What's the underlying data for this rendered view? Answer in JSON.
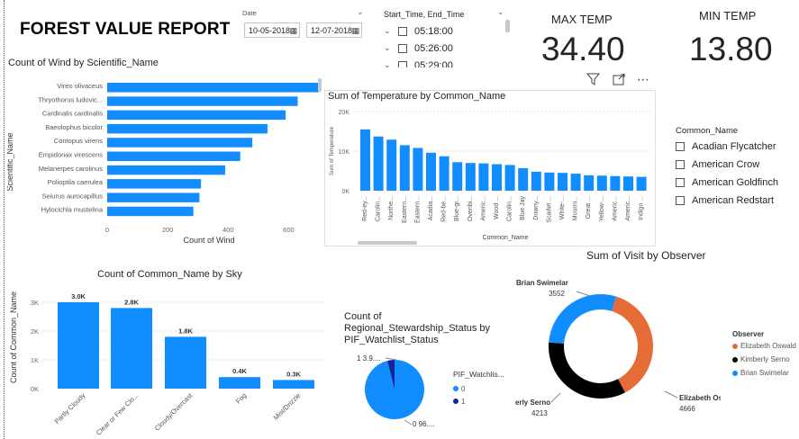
{
  "report": {
    "title": "FOREST VALUE REPORT"
  },
  "date_slicer": {
    "label": "Date",
    "start": "10-05-2018",
    "end": "12-07-2018",
    "calendar_icon": "calendar-icon"
  },
  "time_slicer": {
    "label": "Start_Time, End_Time",
    "items": [
      "05:18:00",
      "05:26:00",
      "05:29:00"
    ]
  },
  "cards": {
    "max_temp": {
      "label": "MAX TEMP",
      "value": "34.40"
    },
    "min_temp": {
      "label": "MIN TEMP",
      "value": "13.80"
    }
  },
  "visual_toolbar": {
    "filter_icon": "filter-icon",
    "focus_icon": "focus-mode-icon",
    "more_icon": "more-options-icon"
  },
  "common_name_slicer": {
    "label": "Common_Name",
    "items": [
      "Acadian Flycatcher",
      "American Crow",
      "American Goldfinch",
      "American Redstart"
    ]
  },
  "chart_data": [
    {
      "type": "bar",
      "orientation": "horizontal",
      "title": "Count of Wind by Scientific_Name",
      "xlabel": "Count of Wind",
      "ylabel": "Scientific_Name",
      "categories": [
        "Vireo olivaceus",
        "Thryothorus ludovic...",
        "Cardinalis cardinalis",
        "Baeolophus bicolor",
        "Contopus virens",
        "Empidonax virescens",
        "Melanerpes carolinus",
        "Polioptila caerulea",
        "Seiurus aurocapillus",
        "Hylocichla mustelina"
      ],
      "values": [
        700,
        630,
        590,
        530,
        480,
        440,
        390,
        310,
        305,
        285
      ],
      "xticks": [
        "0",
        "200",
        "400",
        "600"
      ],
      "xlim": [
        0,
        700
      ],
      "color": "#118DFF"
    },
    {
      "type": "bar",
      "title": "Sum of Temperature by Common_Name",
      "xlabel": "Common_Name",
      "ylabel": "Sum of Temperature",
      "categories": [
        "Red-ey...",
        "Carolin...",
        "Northe...",
        "Eastern...",
        "Eastern...",
        "Acadia...",
        "Red-be...",
        "Blue-gr...",
        "Ovenbi...",
        "Americ...",
        "Wood ...",
        "Carolin...",
        "Blue Jay",
        "Downy...",
        "Scarlet ...",
        "White-...",
        "Mourni...",
        "Great ...",
        "Yellow-...",
        "Americ...",
        "Americ...",
        "Indigo ..."
      ],
      "values": [
        15500,
        13700,
        12900,
        11500,
        10800,
        9600,
        8700,
        7200,
        7000,
        6900,
        6700,
        6500,
        5700,
        4800,
        4600,
        4500,
        4300,
        3900,
        3800,
        3700,
        3600,
        3500
      ],
      "yticks": [
        "0K",
        "10K",
        "20K"
      ],
      "ylim": [
        0,
        20000
      ],
      "color": "#118DFF"
    },
    {
      "type": "bar",
      "title": "Count of Common_Name by Sky",
      "ylabel": "Count of Common_Name",
      "categories": [
        "Partly Cloudy",
        "Clear or Few Clo...",
        "Cloudy/Overcast",
        "Fog",
        "Mist/Drizzle"
      ],
      "values": [
        3000,
        2800,
        1800,
        400,
        300
      ],
      "data_labels": [
        "3.0K",
        "2.8K",
        "1.8K",
        "0.4K",
        "0.3K"
      ],
      "yticks": [
        "0K",
        "1K",
        "2K",
        "3K"
      ],
      "ylim": [
        0,
        3000
      ],
      "color": "#118DFF"
    },
    {
      "type": "pie",
      "title": "Count of Regional_Stewardship_Status by PIF_Watchlist_Status",
      "legend_title": "PIF_Watchlis...",
      "slices": [
        {
          "name": "0",
          "value": 96,
          "label": "0 96....",
          "color": "#118DFF"
        },
        {
          "name": "1",
          "value": 3.9,
          "label": "1 3.9....",
          "color": "#12239E"
        }
      ]
    },
    {
      "type": "pie",
      "donut": true,
      "title": "Sum of Visit by Observer",
      "legend_title": "Observer",
      "slices": [
        {
          "name": "Elizabeth Oswald",
          "value": 4666,
          "label": "Elizabeth Os...",
          "color": "#E66C37"
        },
        {
          "name": "Kimberly Serno",
          "value": 4213,
          "label": "erly Serno",
          "color": "#000000"
        },
        {
          "name": "Brian Swimelar",
          "value": 3552,
          "label": "Brian Swimelar",
          "color": "#118DFF"
        }
      ],
      "value_labels": [
        "4666",
        "4213",
        "3552"
      ]
    }
  ]
}
